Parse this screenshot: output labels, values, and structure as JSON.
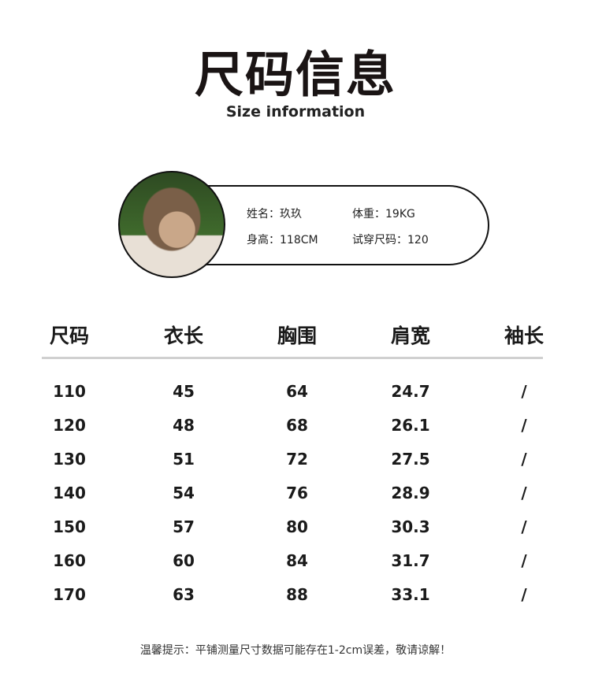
{
  "title": "尺码信息",
  "subtitle": "Size information",
  "model": {
    "name": "姓名：玖玖",
    "weight": "体重：19KG",
    "height": "身高：118CM",
    "tried_size": "试穿尺码：120"
  },
  "table": {
    "headers": [
      "尺码",
      "衣长",
      "胸围",
      "肩宽",
      "袖长"
    ],
    "rows": [
      [
        "110",
        "45",
        "64",
        "24.7",
        "/"
      ],
      [
        "120",
        "48",
        "68",
        "26.1",
        "/"
      ],
      [
        "130",
        "51",
        "72",
        "27.5",
        "/"
      ],
      [
        "140",
        "54",
        "76",
        "28.9",
        "/"
      ],
      [
        "150",
        "57",
        "80",
        "30.3",
        "/"
      ],
      [
        "160",
        "60",
        "84",
        "31.7",
        "/"
      ],
      [
        "170",
        "63",
        "88",
        "33.1",
        "/"
      ]
    ]
  },
  "note": "温馨提示：平铺测量尺寸数据可能存在1-2cm误差，敬请谅解！"
}
